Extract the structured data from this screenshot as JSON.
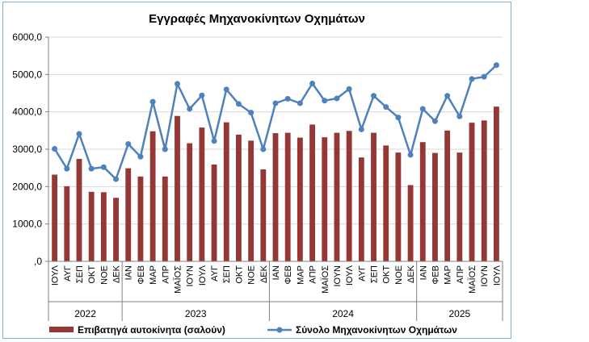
{
  "chart_data": {
    "type": "bar",
    "title": "Εγγραφές Μηχανοκίνητων Οχημάτων",
    "ylim": [
      0,
      6000
    ],
    "yticks": [
      ",0",
      "1000,0",
      "2000,0",
      "3000,0",
      "4000,0",
      "5000,0",
      "6000,0"
    ],
    "categories": [
      "ΙΟΥΛ",
      "ΑΥΓ",
      "ΣΕΠ",
      "ΟΚΤ",
      "ΝΟΕ",
      "ΔΕΚ",
      "ΙΑΝ",
      "ΦΕΒ",
      "ΜΑΡ",
      "ΑΠΡ",
      "ΜΑΪΟΣ",
      "ΙΟΥΝ",
      "ΙΟΥΛ",
      "ΑΥΓ",
      "ΣΕΠ",
      "ΟΚΤ",
      "ΝΟΕ",
      "ΔΕΚ",
      "ΙΑΝ",
      "ΦΕΒ",
      "ΜΑΡ",
      "ΑΠΡ",
      "ΜΑΪΟΣ",
      "ΙΟΥΝ",
      "ΙΟΥΛ",
      "ΑΥΓ",
      "ΣΕΠ",
      "ΟΚΤ",
      "ΝΟΕ",
      "ΔΕΚ",
      "ΙΑΝ",
      "ΦΕΒ",
      "ΜΑΡ",
      "ΑΠΡ",
      "ΜΑΪΟΣ",
      "ΙΟΥΝ",
      "ΙΟΥΛ"
    ],
    "years": [
      {
        "label": "2022",
        "start": 0,
        "end": 5
      },
      {
        "label": "2023",
        "start": 6,
        "end": 17
      },
      {
        "label": "2024",
        "start": 18,
        "end": 29
      },
      {
        "label": "2025",
        "start": 30,
        "end": 36
      }
    ],
    "series": [
      {
        "name": "Επιβατηγά αυτοκίνητα (σαλούν)",
        "type": "bar",
        "color": "#953735",
        "values": [
          2320,
          2010,
          2740,
          1860,
          1850,
          1700,
          2490,
          2270,
          3480,
          2270,
          3890,
          3160,
          3580,
          2590,
          3720,
          3390,
          3230,
          2460,
          3430,
          3440,
          3310,
          3660,
          3320,
          3440,
          3490,
          2780,
          3440,
          3100,
          2910,
          2040,
          3190,
          2900,
          3500,
          2910,
          3710,
          3770,
          4140
        ]
      },
      {
        "name": "Σύνολο Μηχανοκίνητων Οχημάτων",
        "type": "line",
        "color": "#4f81bd",
        "values": [
          3010,
          2480,
          3410,
          2480,
          2520,
          2200,
          3140,
          2800,
          4270,
          3000,
          4750,
          4080,
          4440,
          3220,
          4600,
          4210,
          3980,
          3000,
          4230,
          4350,
          4230,
          4760,
          4300,
          4360,
          4610,
          3530,
          4430,
          4130,
          3850,
          2850,
          4080,
          3750,
          4430,
          3880,
          4880,
          4940,
          5250
        ]
      }
    ],
    "legend_position": "bottom",
    "grid": true
  }
}
